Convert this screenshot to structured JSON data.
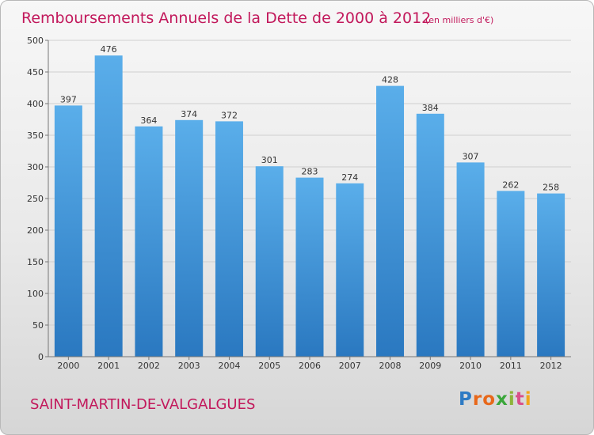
{
  "chart_data": {
    "type": "bar",
    "title": "Remboursements Annuels de la Dette de 2000 à 2012",
    "subtitle": "(en milliers d'€)",
    "categories": [
      "2000",
      "2001",
      "2002",
      "2003",
      "2004",
      "2005",
      "2006",
      "2007",
      "2008",
      "2009",
      "2010",
      "2011",
      "2012"
    ],
    "values": [
      397,
      476,
      364,
      374,
      372,
      301,
      283,
      274,
      428,
      384,
      307,
      262,
      258
    ],
    "ylim": [
      0,
      500
    ],
    "yticks": [
      0,
      50,
      100,
      150,
      200,
      250,
      300,
      350,
      400,
      450,
      500
    ],
    "grid": true,
    "bar_color": "#4a9fe0",
    "data_labels": true
  },
  "commune_name": "SAINT-MARTIN-DE-VALGALGUES",
  "logo": {
    "letters": [
      "P",
      "r",
      "o",
      "x",
      "i",
      "t",
      "i"
    ],
    "colors": [
      "#2e7bc4",
      "#e8681a",
      "#e8681a",
      "#3aa63a",
      "#8db33a",
      "#d94f8a",
      "#f2a51a"
    ]
  },
  "colors": {
    "title": "#c2185b",
    "text": "#333333",
    "grid": "#cfcfcf"
  }
}
